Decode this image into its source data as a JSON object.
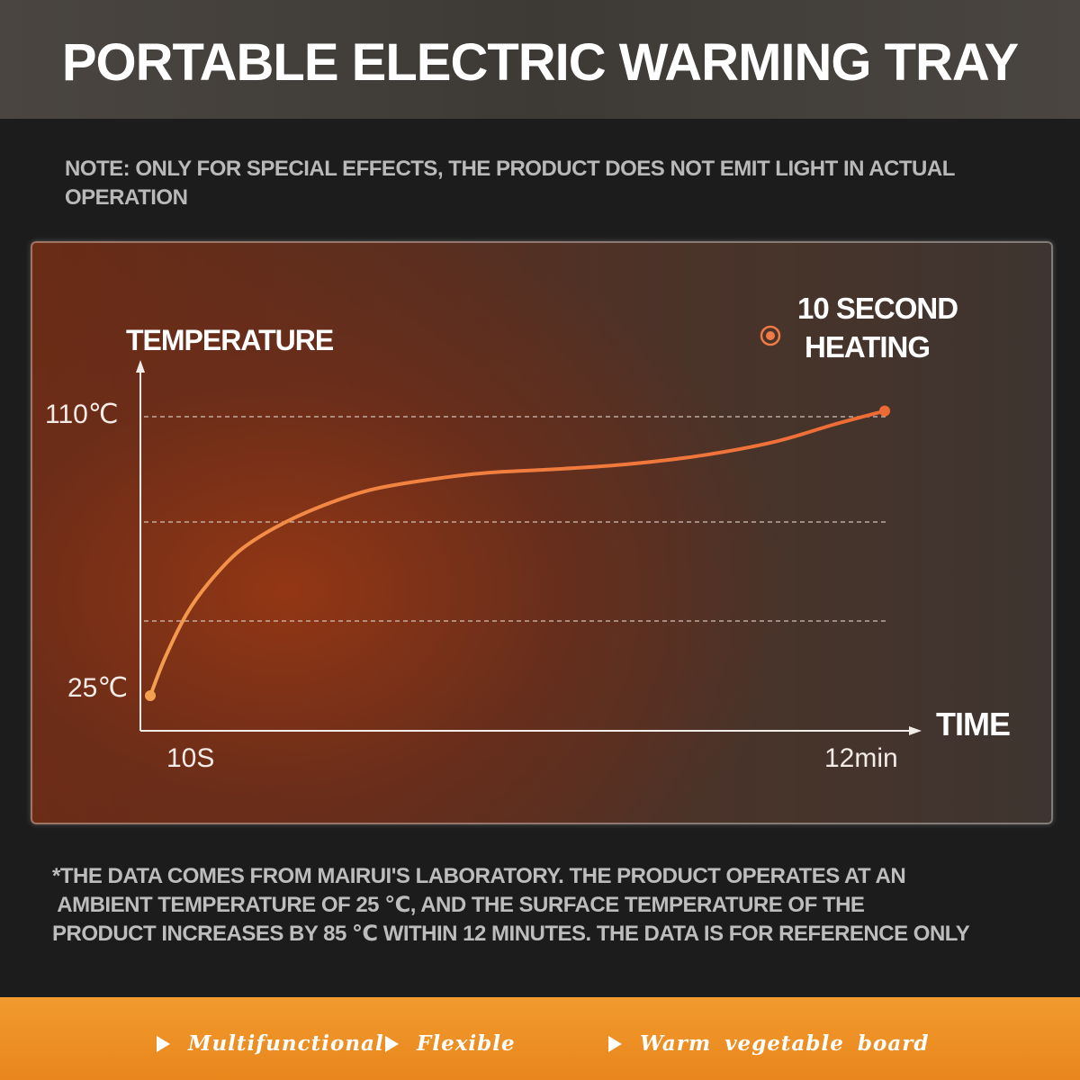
{
  "header": {
    "title": "PORTABLE ELECTRIC WARMING TRAY"
  },
  "note": "NOTE: ONLY FOR SPECIAL EFFECTS, THE PRODUCT DOES NOT EMIT LIGHT IN ACTUAL OPERATION",
  "chart_data": {
    "type": "line",
    "ylabel": "TEMPERATURE",
    "xlabel": "TIME",
    "y_tick_labels": [
      "110℃",
      "25℃"
    ],
    "x_tick_labels": [
      "10S",
      "12min"
    ],
    "legend": {
      "label_line1": "10 SECOND",
      "label_line2": "HEATING",
      "placement": "top-right"
    },
    "ylim": [
      25,
      110
    ],
    "grid": true,
    "series": [
      {
        "color": "#f07a3c",
        "points": [
          [
            0.0,
            25
          ],
          [
            0.02,
            36
          ],
          [
            0.05,
            49
          ],
          [
            0.08,
            58
          ],
          [
            0.12,
            67
          ],
          [
            0.17,
            74
          ],
          [
            0.23,
            80
          ],
          [
            0.3,
            85
          ],
          [
            0.38,
            88
          ],
          [
            0.46,
            90
          ],
          [
            0.55,
            91
          ],
          [
            0.65,
            92.5
          ],
          [
            0.75,
            95
          ],
          [
            0.85,
            99
          ],
          [
            0.93,
            104
          ],
          [
            1.0,
            108
          ]
        ]
      }
    ]
  },
  "disclaimer": [
    "*THE DATA COMES FROM MAIRUI'S LABORATORY. THE PRODUCT OPERATES AT AN",
    " AMBIENT TEMPERATURE OF 25 ℃, AND THE SURFACE TEMPERATURE OF THE",
    "PRODUCT INCREASES BY 85 ℃ WITHIN 12 MINUTES. THE DATA IS FOR REFERENCE ONLY"
  ],
  "features": [
    "Multifunctional",
    "Flexible",
    "Warm vegetable board"
  ],
  "colors": {
    "accent": "#e8861c",
    "curve_start": "#f5a050",
    "curve_end": "#ee6a35",
    "text_light": "#ffffff"
  }
}
